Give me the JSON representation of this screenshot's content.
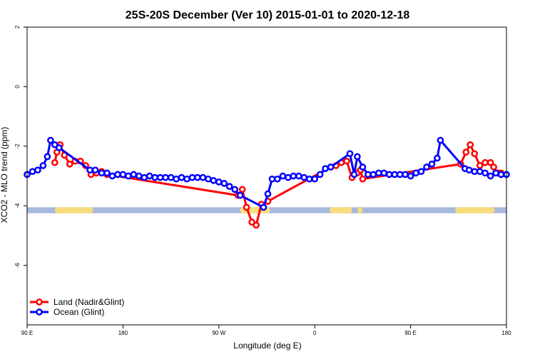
{
  "chart_data": {
    "type": "line",
    "title": "25S-20S December (Ver 10)   2015-01-01 to 2020-12-18",
    "xlabel": "Longitude (deg E)",
    "ylabel": "XCO2 - MLO trend (ppm)",
    "xlim": [
      90,
      540
    ],
    "ylim": [
      -8,
      2
    ],
    "x_ticks": [
      {
        "value": 90,
        "label": "90 E"
      },
      {
        "value": 180,
        "label": "180"
      },
      {
        "value": 270,
        "label": "90 W"
      },
      {
        "value": 360,
        "label": "0"
      },
      {
        "value": 450,
        "label": "90 E"
      },
      {
        "value": 540,
        "label": "180"
      }
    ],
    "y_ticks": [
      {
        "value": 2,
        "label": "2"
      },
      {
        "value": 0,
        "label": "0"
      },
      {
        "value": -2,
        "label": "-2"
      },
      {
        "value": -4,
        "label": "-4"
      },
      {
        "value": -6,
        "label": "-6"
      }
    ],
    "grid": false,
    "legend_position": "bottom-left",
    "land_band": {
      "y_top": -4.05,
      "y_bottom": -4.25,
      "ocean_color": "#a6b9dc",
      "land_color": "#f9dc7c",
      "land_segments": [
        [
          116,
          152
        ],
        [
          290,
          318
        ],
        [
          374,
          395
        ],
        [
          400,
          405
        ],
        [
          492,
          529
        ]
      ]
    },
    "series": [
      {
        "name": "Land (Nadir&Glint)",
        "color": "#ff0000",
        "x": [
          116,
          118,
          121,
          125,
          130,
          135,
          140,
          145,
          150,
          155,
          160,
          165,
          288,
          292,
          296,
          301,
          305,
          310,
          316,
          375,
          380,
          385,
          390,
          395,
          400,
          403,
          405,
          497,
          502,
          506,
          510,
          515,
          520,
          525,
          528,
          532,
          535
        ],
        "y": [
          -2.55,
          -2.2,
          -1.95,
          -2.3,
          -2.6,
          -2.5,
          -2.5,
          -2.65,
          -2.95,
          -2.9,
          -2.85,
          -2.95,
          -3.65,
          -3.45,
          -4.05,
          -4.55,
          -4.65,
          -3.95,
          -3.85,
          -2.7,
          -2.65,
          -2.55,
          -2.5,
          -3.05,
          -2.9,
          -2.8,
          -3.1,
          -2.6,
          -2.2,
          -1.95,
          -2.25,
          -2.65,
          -2.55,
          -2.55,
          -2.7,
          -2.9,
          -2.9
        ]
      },
      {
        "name": "Ocean (Glint)",
        "color": "#0000ff",
        "x": [
          90,
          95,
          100,
          105,
          109,
          112,
          116,
          120,
          149,
          154,
          160,
          165,
          170,
          175,
          180,
          185,
          190,
          195,
          200,
          205,
          210,
          215,
          220,
          225,
          230,
          235,
          240,
          245,
          250,
          255,
          260,
          265,
          270,
          275,
          280,
          285,
          290,
          312,
          316,
          320,
          325,
          330,
          335,
          340,
          345,
          350,
          355,
          360,
          365,
          370,
          375,
          393,
          397,
          400,
          405,
          410,
          415,
          420,
          425,
          430,
          435,
          440,
          445,
          450,
          455,
          460,
          465,
          470,
          475,
          478,
          501,
          505,
          510,
          515,
          520,
          525,
          530,
          535,
          540
        ],
        "y": [
          -2.95,
          -2.85,
          -2.8,
          -2.65,
          -2.35,
          -1.8,
          -1.95,
          -2.05,
          -2.8,
          -2.8,
          -2.9,
          -2.9,
          -3.0,
          -2.95,
          -2.95,
          -3.0,
          -2.95,
          -3.0,
          -3.05,
          -3.0,
          -3.05,
          -3.05,
          -3.05,
          -3.05,
          -3.1,
          -3.05,
          -3.1,
          -3.05,
          -3.05,
          -3.05,
          -3.1,
          -3.15,
          -3.2,
          -3.25,
          -3.35,
          -3.45,
          -3.65,
          -4.05,
          -3.6,
          -3.1,
          -3.1,
          -3.0,
          -3.05,
          -3.0,
          -3.0,
          -3.05,
          -3.1,
          -3.1,
          -2.95,
          -2.75,
          -2.7,
          -2.25,
          -2.95,
          -2.35,
          -2.7,
          -2.95,
          -2.95,
          -2.9,
          -2.9,
          -2.95,
          -2.95,
          -2.95,
          -2.95,
          -3.0,
          -2.9,
          -2.85,
          -2.7,
          -2.6,
          -2.4,
          -1.8,
          -2.75,
          -2.8,
          -2.85,
          -2.85,
          -2.9,
          -3.0,
          -2.9,
          -2.95,
          -2.95
        ]
      }
    ]
  }
}
